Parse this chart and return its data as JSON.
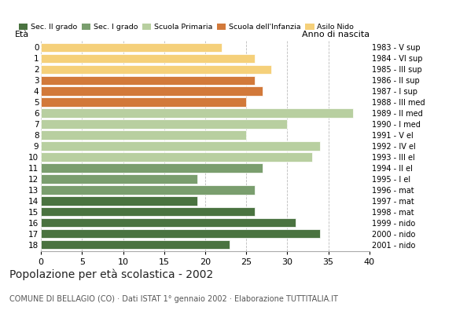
{
  "ages": [
    18,
    17,
    16,
    15,
    14,
    13,
    12,
    11,
    10,
    9,
    8,
    7,
    6,
    5,
    4,
    3,
    2,
    1,
    0
  ],
  "values": [
    23,
    34,
    31,
    26,
    19,
    26,
    19,
    27,
    33,
    34,
    25,
    30,
    38,
    25,
    27,
    26,
    28,
    26,
    22
  ],
  "right_labels": [
    "1983 - V sup",
    "1984 - VI sup",
    "1985 - III sup",
    "1986 - II sup",
    "1987 - I sup",
    "1988 - III med",
    "1989 - II med",
    "1990 - I med",
    "1991 - V el",
    "1992 - IV el",
    "1993 - III el",
    "1994 - II el",
    "1995 - I el",
    "1996 - mat",
    "1997 - mat",
    "1998 - mat",
    "1999 - nido",
    "2000 - nido",
    "2001 - nido"
  ],
  "bar_colors": [
    "#4a7340",
    "#4a7340",
    "#4a7340",
    "#4a7340",
    "#4a7340",
    "#7a9e6e",
    "#7a9e6e",
    "#7a9e6e",
    "#b8cfa0",
    "#b8cfa0",
    "#b8cfa0",
    "#b8cfa0",
    "#b8cfa0",
    "#d2793a",
    "#d2793a",
    "#d2793a",
    "#f5d07a",
    "#f5d07a",
    "#f5d07a"
  ],
  "legend_labels": [
    "Sec. II grado",
    "Sec. I grado",
    "Scuola Primaria",
    "Scuola dell'Infanzia",
    "Asilo Nido"
  ],
  "legend_colors": [
    "#4a7340",
    "#7a9e6e",
    "#b8cfa0",
    "#d2793a",
    "#f5d07a"
  ],
  "label_age": "Età",
  "label_birth": "Anno di nascita",
  "xticks": [
    0,
    5,
    10,
    15,
    20,
    25,
    30,
    35,
    40
  ],
  "xlim": [
    0,
    40
  ],
  "title": "Popolazione per età scolastica - 2002",
  "subtitle": "COMUNE DI BELLAGIO (CO) · Dati ISTAT 1° gennaio 2002 · Elaborazione TUTTITALIA.IT",
  "bg_color": "#ffffff",
  "grid_color": "#bbbbbb"
}
